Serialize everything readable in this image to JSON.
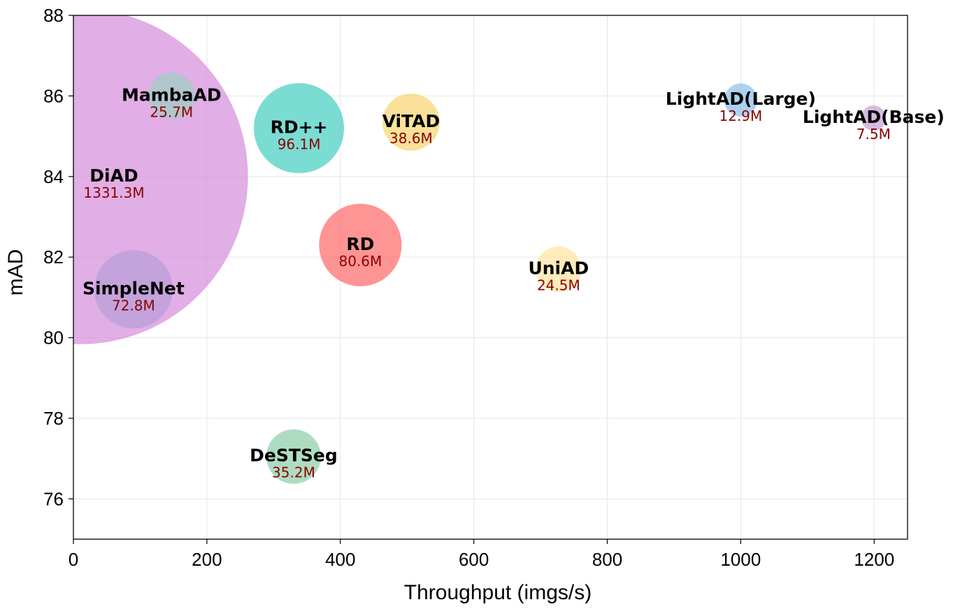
{
  "chart_data": {
    "type": "scatter",
    "title": "",
    "xlabel": "Throughput (imgs/s)",
    "ylabel": "mAD",
    "xlim": [
      0,
      1250
    ],
    "ylim": [
      75,
      88
    ],
    "xticks": [
      "0",
      "200",
      "400",
      "600",
      "800",
      "1000",
      "1200"
    ],
    "yticks": [
      "76",
      "78",
      "80",
      "82",
      "84",
      "86",
      "88"
    ],
    "grid": true,
    "legend": "none",
    "size_encodes": "parameters (M)",
    "points": [
      {
        "name": "DiAD",
        "params": "1331.3M",
        "x": 10,
        "y": 84.0,
        "size": 1331.3,
        "color": "#d58fdb"
      },
      {
        "name": "MambaAD",
        "params": "25.7M",
        "x": 147,
        "y": 86.0,
        "size": 25.7,
        "color": "#9ecfc4"
      },
      {
        "name": "RD++",
        "params": "96.1M",
        "x": 338,
        "y": 85.2,
        "size": 96.1,
        "color": "#47cec0"
      },
      {
        "name": "ViTAD",
        "params": "38.6M",
        "x": 506,
        "y": 85.35,
        "size": 38.6,
        "color": "#f6d671"
      },
      {
        "name": "SimpleNet",
        "params": "72.8M",
        "x": 90,
        "y": 81.2,
        "size": 72.8,
        "color": "#b9a0d8"
      },
      {
        "name": "RD",
        "params": "80.6M",
        "x": 430,
        "y": 82.3,
        "size": 80.6,
        "color": "#ff6b6b"
      },
      {
        "name": "UniAD",
        "params": "24.5M",
        "x": 727,
        "y": 81.7,
        "size": 24.5,
        "color": "#fde4a0"
      },
      {
        "name": "LightAD(Large)",
        "params": "12.9M",
        "x": 1000,
        "y": 85.9,
        "size": 12.9,
        "color": "#8ec1ec"
      },
      {
        "name": "LightAD(Base)",
        "params": "7.5M",
        "x": 1199,
        "y": 85.45,
        "size": 7.5,
        "color": "#c89fd7"
      },
      {
        "name": "DeSTSeg",
        "params": "35.2M",
        "x": 330,
        "y": 77.05,
        "size": 35.2,
        "color": "#8fcfaa"
      }
    ]
  }
}
